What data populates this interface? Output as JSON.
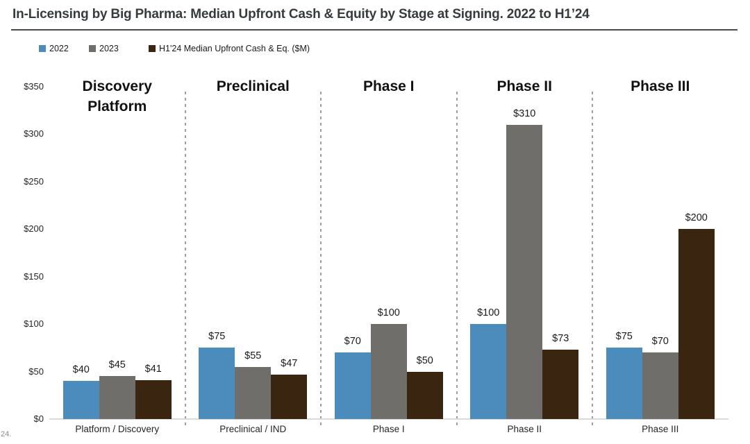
{
  "title": "In-Licensing by Big Pharma: Median Upfront Cash & Equity by Stage at Signing. 2022 to H1’24",
  "footnote_partial": "24.",
  "legend": {
    "items": [
      {
        "label": "2022",
        "color": "#4B8CBD"
      },
      {
        "label": "2023",
        "color": "#6F6E6A"
      },
      {
        "label": "H1'24 Median Upfront Cash & Eq. ($M)",
        "color": "#3A2511"
      }
    ]
  },
  "chart_data": {
    "type": "bar",
    "title": "In-Licensing by Big Pharma: Median Upfront Cash & Equity by Stage at Signing. 2022 to H1’24",
    "xlabel": "",
    "ylabel": "Median Upfront Cash & Eq. ($M)",
    "ylim": [
      0,
      350
    ],
    "ytick_values": [
      350,
      300,
      250,
      200,
      150,
      100,
      50,
      0
    ],
    "ytick_labels": [
      "$350",
      "$300",
      "$250",
      "$200",
      "$150",
      "$100",
      "$50",
      "$0"
    ],
    "grid": false,
    "legend_position": "top-left",
    "value_prefix": "$",
    "panel_headers": [
      "Discovery Platform",
      "Preclinical",
      "Phase I",
      "Phase II",
      "Phase III"
    ],
    "categories": [
      "Platform / Discovery",
      "Preclinical / IND",
      "Phase I",
      "Phase II",
      "Phase III"
    ],
    "series": [
      {
        "name": "2022",
        "color": "#4B8CBD",
        "values": [
          40,
          75,
          70,
          100,
          75
        ]
      },
      {
        "name": "2023",
        "color": "#6F6E6A",
        "values": [
          45,
          55,
          100,
          310,
          70
        ]
      },
      {
        "name": "H1'24",
        "color": "#3A2511",
        "values": [
          41,
          47,
          50,
          73,
          200
        ]
      }
    ]
  }
}
